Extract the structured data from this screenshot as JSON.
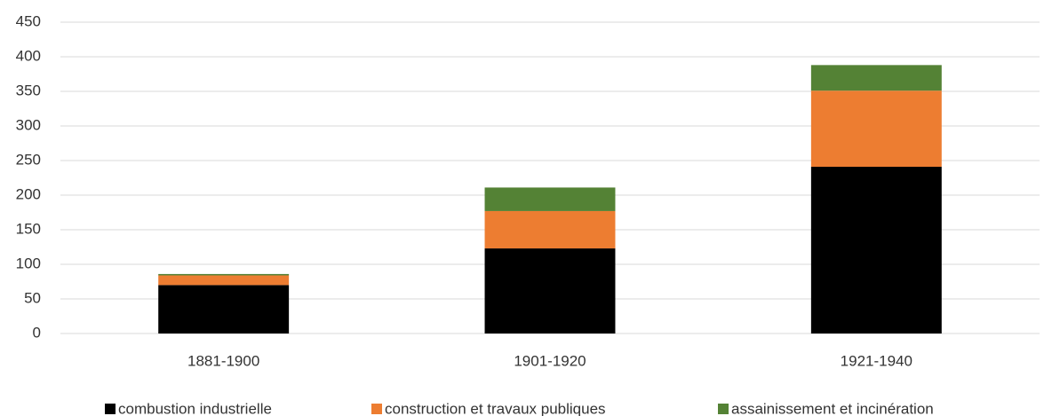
{
  "chart_data": {
    "type": "stacked_bar",
    "categories": [
      "1881-1900",
      "1901-1920",
      "1921-1940"
    ],
    "series": [
      {
        "name": "combustion industrielle",
        "color": "#000000",
        "values": [
          70,
          123,
          241
        ]
      },
      {
        "name": "construction et travaux publiques",
        "color": "#ed7d31",
        "values": [
          14,
          54,
          110
        ]
      },
      {
        "name": "assainissement et incinération",
        "color": "#548235",
        "values": [
          2,
          34,
          37
        ]
      }
    ],
    "ylim": [
      0,
      450
    ],
    "yticks": [
      0,
      50,
      100,
      150,
      200,
      250,
      300,
      350,
      400,
      450
    ],
    "grid": true,
    "legend": "bottom"
  }
}
